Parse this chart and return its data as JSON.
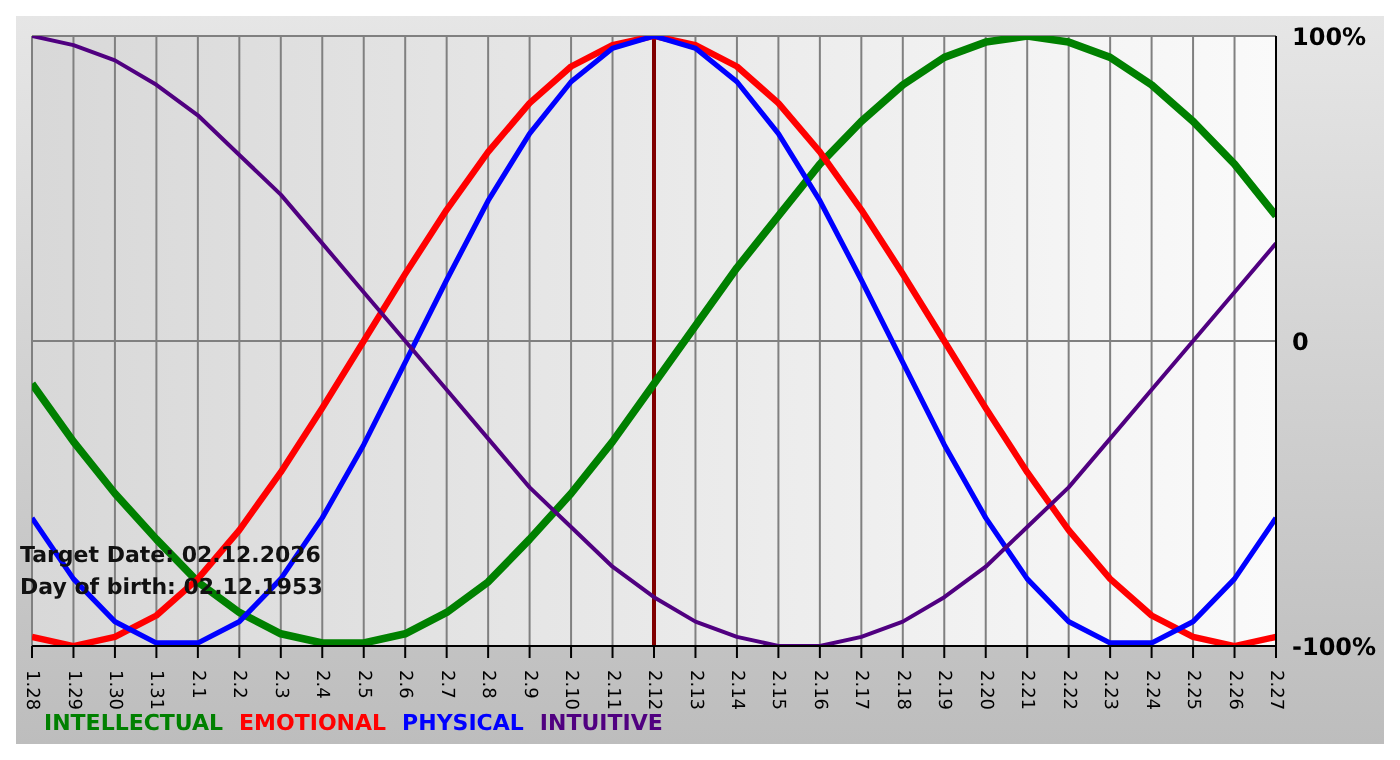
{
  "chart_data": {
    "type": "line",
    "categories": [
      "1.28",
      "1.29",
      "1.30",
      "1.31",
      "2.1",
      "2.2",
      "2.3",
      "2.4",
      "2.5",
      "2.6",
      "2.7",
      "2.8",
      "2.9",
      "2.10",
      "2.11",
      "2.12",
      "2.13",
      "2.14",
      "2.15",
      "2.16",
      "2.17",
      "2.18",
      "2.19",
      "2.20",
      "2.21",
      "2.22",
      "2.23",
      "2.24",
      "2.25",
      "2.26",
      "2.27"
    ],
    "series": [
      {
        "name": "INTELLECTUAL",
        "color": "#008000",
        "values": [
          -14,
          -33,
          -50,
          -65,
          -79,
          -89,
          -96,
          -99,
          -99,
          -96,
          -89,
          -79,
          -65,
          -50,
          -33,
          -14,
          5,
          24,
          41,
          58,
          72,
          84,
          93,
          98,
          100,
          98,
          93,
          84,
          72,
          58,
          41
        ]
      },
      {
        "name": "EMOTIONAL",
        "color": "#ff0000",
        "values": [
          -97,
          -100,
          -97,
          -90,
          -78,
          -62,
          -43,
          -22,
          0,
          22,
          43,
          62,
          78,
          90,
          97,
          100,
          97,
          90,
          78,
          62,
          43,
          22,
          0,
          -22,
          -43,
          -62,
          -78,
          -90,
          -97,
          -100,
          -97
        ]
      },
      {
        "name": "PHYSICAL",
        "color": "#0000ff",
        "values": [
          -58,
          -78,
          -92,
          -99,
          -99,
          -92,
          -78,
          -58,
          -34,
          -7,
          20,
          46,
          68,
          85,
          96,
          100,
          96,
          85,
          68,
          46,
          20,
          -7,
          -34,
          -58,
          -78,
          -92,
          -99,
          -99,
          -92,
          -78,
          -58
        ]
      },
      {
        "name": "INTUITIVE",
        "color": "#500080",
        "values": [
          100,
          97,
          92,
          84,
          74,
          61,
          48,
          32,
          16,
          0,
          -16,
          -32,
          -48,
          -61,
          -74,
          -84,
          -92,
          -97,
          -100,
          -100,
          -97,
          -92,
          -84,
          -74,
          -61,
          -48,
          -32,
          -16,
          0,
          16,
          32
        ]
      }
    ],
    "ylim": [
      -100,
      100
    ],
    "yticks": [
      {
        "value": -100,
        "label": "-100%"
      },
      0,
      {
        "value": 100,
        "label": "100%"
      }
    ],
    "grid": true,
    "legend": "bottom left",
    "marker": "none",
    "line_style": "solid",
    "ref_lines": [
      {
        "axis": "x",
        "value": "2.12",
        "color": "#800000"
      }
    ],
    "annotations": [
      "Target Date: 02.12.2026",
      "Day of birth: 02.12.1953"
    ]
  }
}
